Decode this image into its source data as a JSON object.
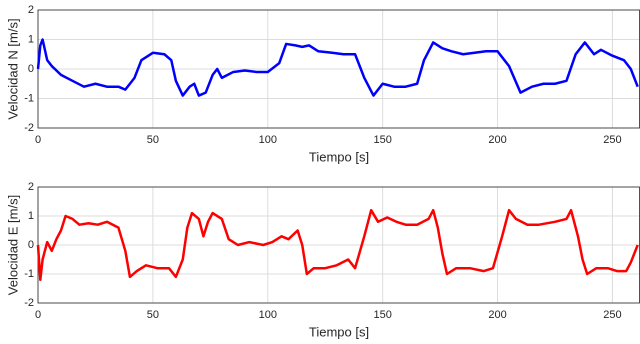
{
  "chart_data": [
    {
      "type": "line",
      "xlabel": "Tiempo [s]",
      "ylabel": "Velocidad N [m/s]",
      "color": "#0000ff",
      "grid": true,
      "xlim": [
        0,
        262
      ],
      "ylim": [
        -2,
        2
      ],
      "xticks": [
        0,
        50,
        100,
        150,
        200,
        250
      ],
      "yticks": [
        -2,
        -1,
        0,
        1,
        2
      ],
      "x": [
        0,
        1,
        2,
        4,
        6,
        10,
        15,
        20,
        25,
        30,
        35,
        38,
        42,
        45,
        50,
        55,
        58,
        60,
        63,
        66,
        68,
        70,
        73,
        76,
        78,
        80,
        85,
        90,
        95,
        100,
        105,
        108,
        112,
        115,
        118,
        122,
        128,
        133,
        138,
        142,
        146,
        150,
        155,
        160,
        165,
        168,
        172,
        176,
        180,
        185,
        190,
        195,
        200,
        205,
        210,
        215,
        220,
        225,
        230,
        234,
        238,
        242,
        245,
        250,
        255,
        258,
        261
      ],
      "values": [
        0,
        0.8,
        1.0,
        0.3,
        0.1,
        -0.2,
        -0.4,
        -0.6,
        -0.5,
        -0.6,
        -0.6,
        -0.7,
        -0.3,
        0.3,
        0.55,
        0.5,
        0.3,
        -0.4,
        -0.9,
        -0.6,
        -0.5,
        -0.9,
        -0.8,
        -0.2,
        0,
        -0.3,
        -0.1,
        -0.05,
        -0.1,
        -0.1,
        0.2,
        0.85,
        0.8,
        0.75,
        0.8,
        0.6,
        0.55,
        0.5,
        0.5,
        -0.3,
        -0.9,
        -0.5,
        -0.6,
        -0.6,
        -0.5,
        0.3,
        0.9,
        0.7,
        0.6,
        0.5,
        0.55,
        0.6,
        0.6,
        0.1,
        -0.8,
        -0.6,
        -0.5,
        -0.5,
        -0.4,
        0.5,
        0.9,
        0.5,
        0.65,
        0.45,
        0.3,
        0,
        -0.6
      ]
    },
    {
      "type": "line",
      "xlabel": "Tiempo [s]",
      "ylabel": "Velocidad E [m/s]",
      "color": "#ff0000",
      "grid": true,
      "xlim": [
        0,
        262
      ],
      "ylim": [
        -2,
        2
      ],
      "xticks": [
        0,
        50,
        100,
        150,
        200,
        250
      ],
      "yticks": [
        -2,
        -1,
        0,
        1,
        2
      ],
      "x": [
        0,
        1,
        2,
        4,
        6,
        8,
        10,
        12,
        15,
        18,
        22,
        26,
        30,
        35,
        38,
        40,
        43,
        47,
        52,
        57,
        60,
        63,
        65,
        67,
        70,
        72,
        74,
        76,
        80,
        83,
        87,
        92,
        98,
        102,
        106,
        109,
        113,
        115,
        117,
        120,
        125,
        130,
        135,
        138,
        142,
        145,
        148,
        152,
        156,
        160,
        165,
        170,
        172,
        174,
        176,
        178,
        182,
        188,
        194,
        198,
        202,
        205,
        208,
        213,
        218,
        225,
        230,
        232,
        235,
        237,
        239,
        243,
        248,
        252,
        256,
        258,
        261
      ],
      "values": [
        0,
        -1.2,
        -0.5,
        0.1,
        -0.2,
        0.2,
        0.5,
        1.0,
        0.9,
        0.7,
        0.75,
        0.7,
        0.8,
        0.6,
        -0.2,
        -1.1,
        -0.9,
        -0.7,
        -0.8,
        -0.8,
        -1.1,
        -0.5,
        0.6,
        1.1,
        0.9,
        0.3,
        0.8,
        1.1,
        0.9,
        0.2,
        0,
        0.1,
        0,
        0.1,
        0.3,
        0.2,
        0.5,
        0,
        -1.0,
        -0.8,
        -0.8,
        -0.7,
        -0.5,
        -0.8,
        0.3,
        1.2,
        0.8,
        0.95,
        0.8,
        0.7,
        0.7,
        0.9,
        1.2,
        0.6,
        -0.3,
        -1.0,
        -0.8,
        -0.8,
        -0.9,
        -0.8,
        0.3,
        1.2,
        0.9,
        0.7,
        0.7,
        0.8,
        0.9,
        1.2,
        0.3,
        -0.5,
        -1.0,
        -0.8,
        -0.8,
        -0.9,
        -0.9,
        -0.6,
        0
      ]
    }
  ]
}
